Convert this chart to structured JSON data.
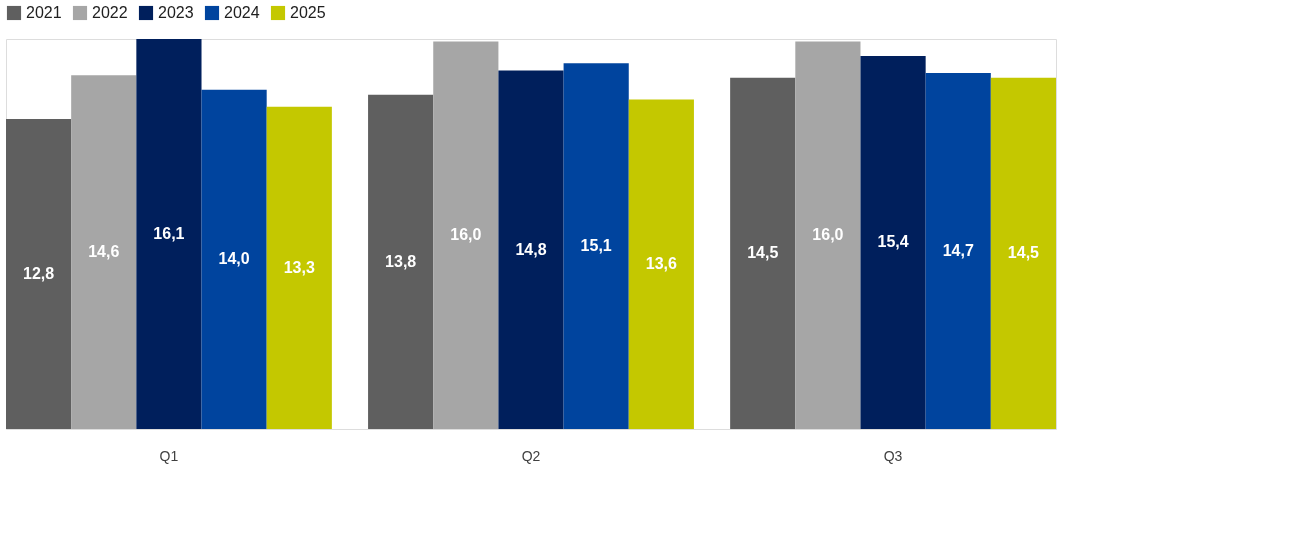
{
  "chart_data": {
    "type": "bar",
    "categories": [
      "Q1",
      "Q2",
      "Q3"
    ],
    "series": [
      {
        "name": "2021",
        "color": "#5f5f5f",
        "values": [
          12.8,
          13.8,
          14.5
        ],
        "value_labels": [
          "12,8",
          "13,8",
          "14,5"
        ]
      },
      {
        "name": "2022",
        "color": "#a6a6a6",
        "values": [
          14.6,
          16.0,
          16.0
        ],
        "value_labels": [
          "14,6",
          "16,0",
          "16,0"
        ]
      },
      {
        "name": "2023",
        "color": "#001f5c",
        "values": [
          16.1,
          14.8,
          15.4
        ],
        "value_labels": [
          "16,1",
          "14,8",
          "15,4"
        ]
      },
      {
        "name": "2024",
        "color": "#00449e",
        "values": [
          14.0,
          15.1,
          14.7
        ],
        "value_labels": [
          "14,0",
          "15,1",
          "14,7"
        ]
      },
      {
        "name": "2025",
        "color": "#c4c800",
        "values": [
          13.3,
          13.6,
          14.5
        ],
        "value_labels": [
          "13,3",
          "13,6",
          "14,5"
        ]
      }
    ],
    "legend": "top",
    "grid": false,
    "tick_labels": "x"
  }
}
